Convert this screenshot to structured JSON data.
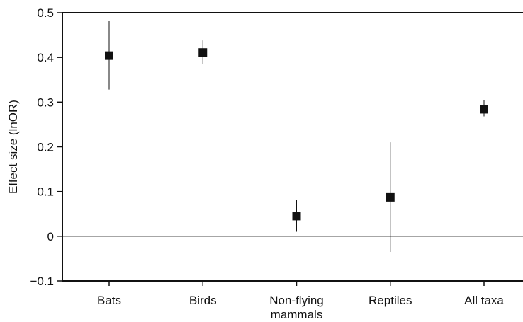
{
  "chart_data": {
    "type": "scatter",
    "title": "",
    "xlabel": "",
    "ylabel": "Effect size (lnOR)",
    "ylim": [
      -0.1,
      0.5
    ],
    "yticks": [
      {
        "value": 0.5,
        "label": "0.5"
      },
      {
        "value": 0.4,
        "label": "0.4"
      },
      {
        "value": 0.3,
        "label": "0.3"
      },
      {
        "value": 0.2,
        "label": "0.2"
      },
      {
        "value": 0.1,
        "label": "0.1"
      },
      {
        "value": 0,
        "label": "0"
      },
      {
        "value": -0.1,
        "label": "−0.1"
      }
    ],
    "categories": [
      {
        "label_lines": [
          "Bats"
        ],
        "value": 0.404,
        "ci_low": 0.328,
        "ci_high": 0.482
      },
      {
        "label_lines": [
          "Birds"
        ],
        "value": 0.411,
        "ci_low": 0.386,
        "ci_high": 0.438
      },
      {
        "label_lines": [
          "Non-flying",
          "mammals"
        ],
        "value": 0.045,
        "ci_low": 0.01,
        "ci_high": 0.082
      },
      {
        "label_lines": [
          "Reptiles"
        ],
        "value": 0.087,
        "ci_low": -0.035,
        "ci_high": 0.21
      },
      {
        "label_lines": [
          "All taxa"
        ],
        "value": 0.284,
        "ci_low": 0.268,
        "ci_high": 0.305
      }
    ],
    "reference_line": 0,
    "grid": false,
    "marker": "square",
    "color": "#111111"
  }
}
